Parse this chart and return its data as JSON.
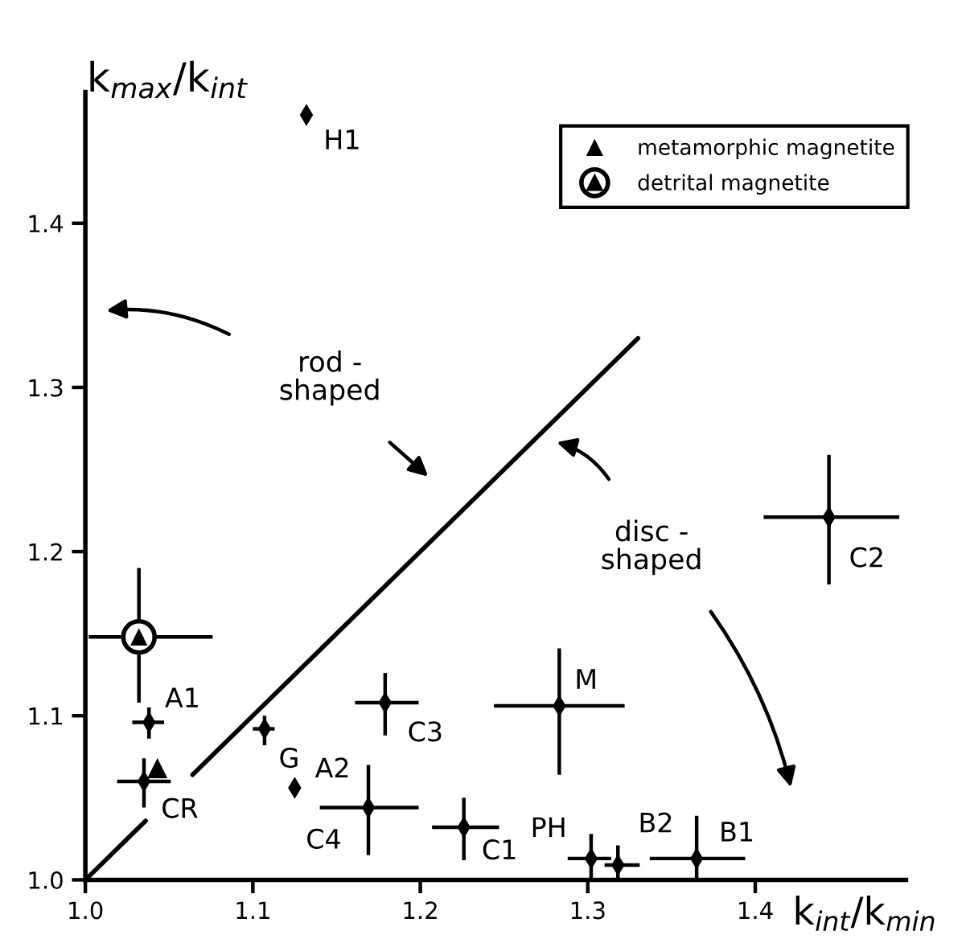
{
  "chart_data": {
    "type": "scatter",
    "xlabel": "k$_{int}$/k$_{min}$",
    "ylabel": "k$_{max}$/k$_{int}$",
    "xlim": [
      1.0,
      1.49
    ],
    "ylim": [
      1.0,
      1.48
    ],
    "xticks": [
      {
        "value": 1.0,
        "label": "1.0"
      },
      1.1,
      1.2,
      1.3,
      1.4
    ],
    "yticks": [
      {
        "value": 1.0,
        "label": "1.0"
      },
      1.1,
      1.2,
      1.3,
      1.4
    ],
    "legend": "top right",
    "series": [
      {
        "color": "#000000",
        "marker": "diamond",
        "x": [
          1.132,
          1.038,
          1.035,
          1.107,
          1.125,
          1.179,
          1.169,
          1.226,
          1.283,
          1.444,
          1.302,
          1.318,
          1.365
        ],
        "values": [
          1.466,
          1.096,
          1.06,
          1.092,
          1.056,
          1.108,
          1.044,
          1.032,
          1.106,
          1.221,
          1.013,
          1.009,
          1.013
        ],
        "errors": [
          null,
          [
            1.086,
            1.105
          ],
          [
            1.044,
            1.074
          ],
          [
            1.082,
            1.1
          ],
          null,
          [
            1.088,
            1.126
          ],
          [
            1.015,
            1.07
          ],
          [
            1.012,
            1.05
          ],
          [
            1.064,
            1.141
          ],
          [
            1.18,
            1.259
          ],
          [
            1.0,
            1.028
          ],
          [
            1.0,
            1.021
          ],
          [
            1.0,
            1.039
          ]
        ],
        "xerrors": [
          null,
          [
            1.028,
            1.047
          ],
          [
            1.019,
            1.051
          ],
          [
            1.1,
            1.113
          ],
          null,
          [
            1.161,
            1.199
          ],
          [
            1.14,
            1.199
          ],
          [
            1.207,
            1.247
          ],
          [
            1.244,
            1.322
          ],
          [
            1.405,
            1.486
          ],
          [
            1.288,
            1.314
          ],
          [
            1.31,
            1.331
          ],
          [
            1.337,
            1.394
          ]
        ]
      },
      {
        "name": "metamorphic magnetite",
        "color": "#000000",
        "marker": "triangle",
        "x": [
          1.043
        ],
        "values": [
          1.068
        ]
      },
      {
        "name": "detrital magnetite",
        "color": "#000000",
        "marker": "circle",
        "x": [
          1.032
        ],
        "values": [
          1.148
        ],
        "errors": [
          [
            1.108,
            1.19
          ]
        ],
        "xerrors": [
          [
            1.002,
            1.076
          ]
        ]
      },
      {
        "type": "line",
        "color": "#000000",
        "marker": "none",
        "x": [
          1.0,
          1.036,
          1.05,
          1.064,
          1.33
        ],
        "values": [
          1.0,
          1.036,
          null,
          1.064,
          1.33
        ]
      }
    ],
    "annotations": [
      {
        "text": "H1",
        "x": 1.132,
        "y": 1.466
      },
      {
        "text": "A1",
        "x": 1.038,
        "y": 1.096
      },
      {
        "text": "CR",
        "x": 1.035,
        "y": 1.06
      },
      {
        "text": "G",
        "x": 1.107,
        "y": 1.092
      },
      {
        "text": "A2",
        "x": 1.125,
        "y": 1.056
      },
      {
        "text": "C3",
        "x": 1.179,
        "y": 1.108
      },
      {
        "text": "C4",
        "x": 1.169,
        "y": 1.044
      },
      {
        "text": "C1",
        "x": 1.226,
        "y": 1.032
      },
      {
        "text": "M",
        "x": 1.283,
        "y": 1.106
      },
      {
        "text": "C2",
        "x": 1.444,
        "y": 1.221
      },
      {
        "text": "PH",
        "x": 1.302,
        "y": 1.013
      },
      {
        "text": "B2",
        "x": 1.318,
        "y": 1.009
      },
      {
        "text": "B1",
        "x": 1.365,
        "y": 1.013
      },
      "rod -\nshaped",
      "disc -\nshaped"
    ]
  }
}
